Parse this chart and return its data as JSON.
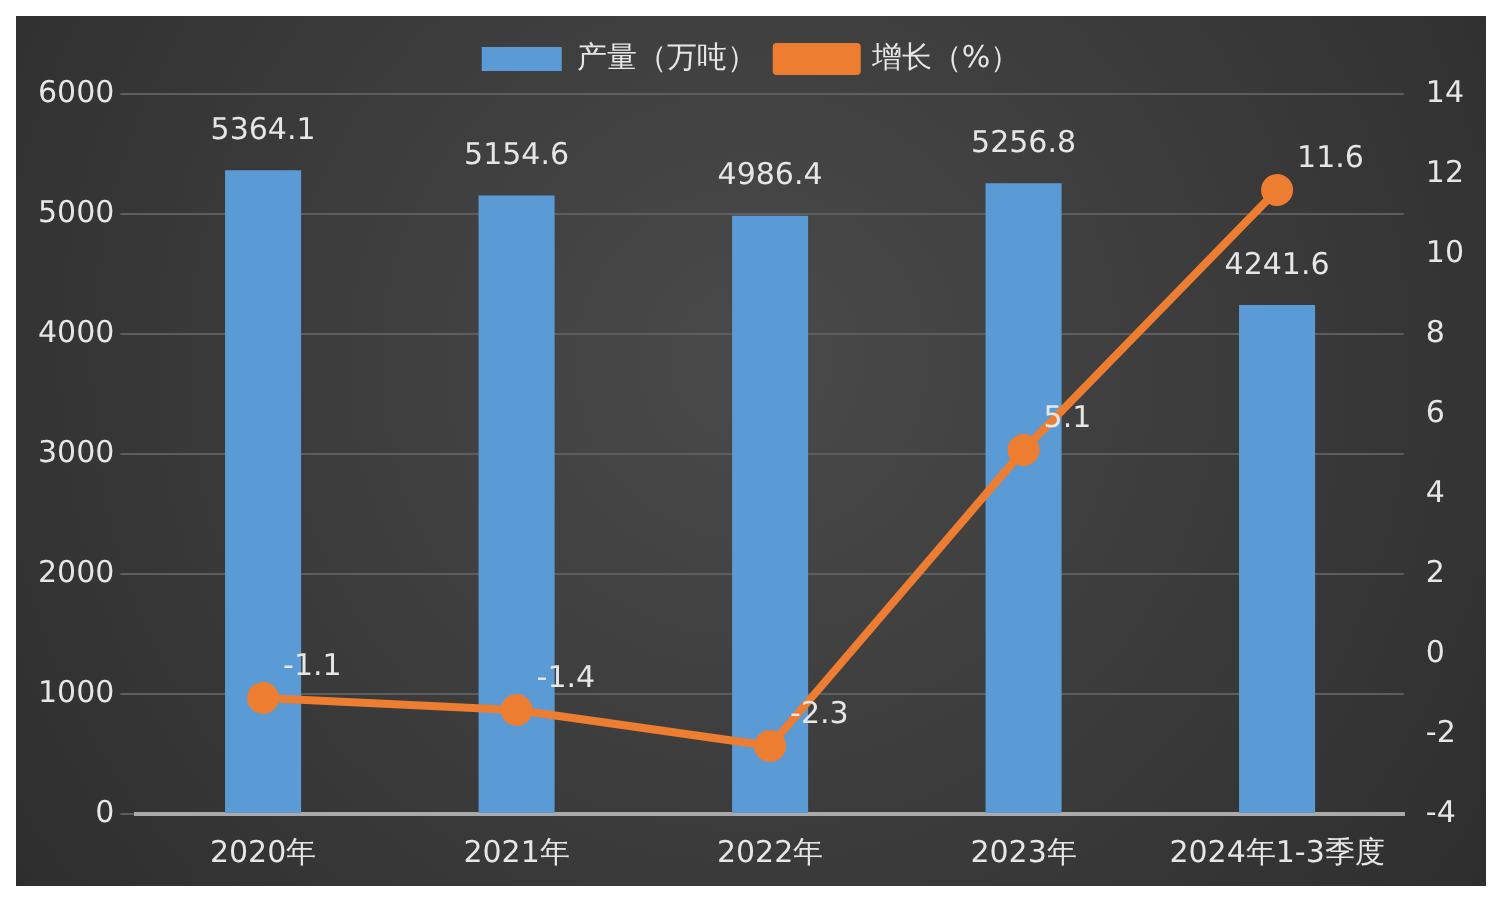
{
  "chart_data": {
    "type": "bar",
    "categories": [
      "2020年",
      "2021年",
      "2022年",
      "2023年",
      "2024年1-3季度"
    ],
    "series": [
      {
        "name": "产量（万吨）",
        "color": "#5b9bd5",
        "values": [
          5364.1,
          5154.6,
          4986.4,
          5256.8,
          4241.6
        ]
      },
      {
        "name": "增长（%）",
        "type": "line",
        "axis": "y2",
        "color": "#ed7d31",
        "values": [
          -1.1,
          -1.4,
          -2.3,
          5.1,
          11.6
        ]
      }
    ],
    "ylim": [
      0,
      6000
    ],
    "yticks": [
      0,
      1000,
      2000,
      3000,
      4000,
      5000,
      6000
    ],
    "y2lim": [
      -4,
      14
    ],
    "y2ticks": [
      -4,
      -2,
      0,
      2,
      4,
      6,
      8,
      10,
      12,
      14
    ],
    "grid": "y",
    "legend": "top",
    "marker": "circle",
    "data_labels": true
  }
}
